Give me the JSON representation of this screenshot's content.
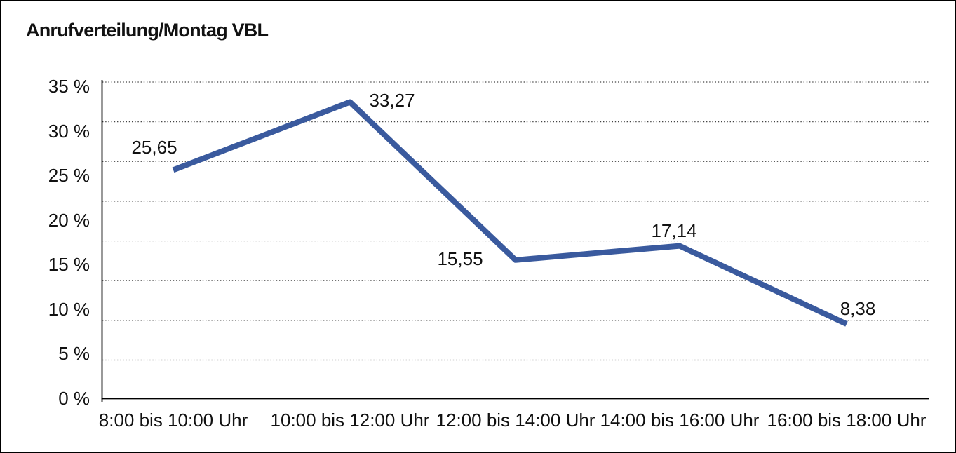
{
  "chart_data": {
    "type": "line",
    "title": "Anrufverteilung/Montag VBL",
    "categories": [
      "8:00 bis 10:00 Uhr",
      "10:00 bis 12:00 Uhr",
      "12:00 bis 14:00 Uhr",
      "14:00 bis 16:00 Uhr",
      "16:00 bis 18:00 Uhr"
    ],
    "values": [
      25.65,
      33.27,
      15.55,
      17.14,
      8.38
    ],
    "value_labels": [
      "25,65",
      "33,27",
      "15,55",
      "17,14",
      "8,38"
    ],
    "y_tick_labels": [
      "35 %",
      "30 %",
      "25 %",
      "20 %",
      "15 %",
      "10 %",
      "5 %",
      "0 %"
    ],
    "y_tick_values": [
      35,
      30,
      25,
      20,
      15,
      10,
      5,
      0
    ],
    "ylim": [
      0,
      35
    ],
    "y_unit": "%",
    "xlabel": "",
    "ylabel": "",
    "legend": "none",
    "grid": "horizontal-dotted",
    "line_color": "#3A5A9E",
    "axis_color": "#000000",
    "grid_color": "#444444",
    "text_color": "#111111",
    "background_color": "#FFFFFF",
    "border_color": "#000000"
  }
}
